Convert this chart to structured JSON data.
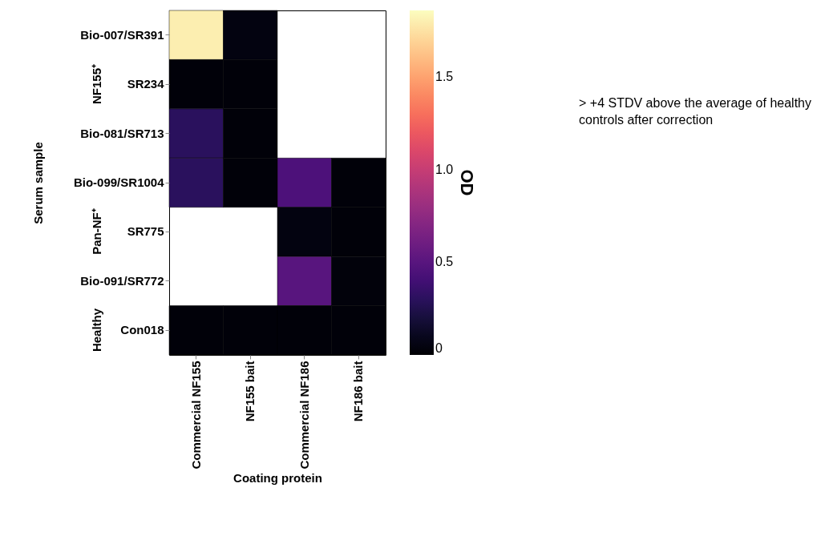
{
  "chart_data": {
    "type": "heatmap",
    "xlabel": "Coating protein",
    "ylabel": "Serum sample",
    "legend_title": "OD",
    "categories": [
      "Commercial NF155",
      "NF155 bait",
      "Commercial NF186",
      "NF186 bait"
    ],
    "y_categories": [
      "Bio-007/SR391",
      "SR234",
      "Bio-081/SR713",
      "Bio-099/SR1004",
      "SR775",
      "Bio-091/SR772",
      "Con018"
    ],
    "cells": [
      [
        1.8,
        0.05,
        null,
        null
      ],
      [
        0.02,
        0.02,
        null,
        null
      ],
      [
        0.3,
        0.02,
        null,
        null
      ],
      [
        0.3,
        0.02,
        0.45,
        0.02
      ],
      [
        null,
        null,
        0.05,
        0.02
      ],
      [
        null,
        null,
        0.5,
        0.03
      ],
      [
        0.02,
        0.02,
        0.02,
        0.02
      ]
    ],
    "clim": [
      0,
      1.86
    ],
    "cticks": [
      {
        "value": 0,
        "label": "0"
      },
      0.5,
      {
        "value": 1,
        "label": "1.0"
      },
      1.5
    ],
    "annotations": [
      "NF155⁺",
      "Pan-NF⁺",
      "Healthy",
      "> +4 STDV above the average of healthy controls after correction"
    ]
  }
}
